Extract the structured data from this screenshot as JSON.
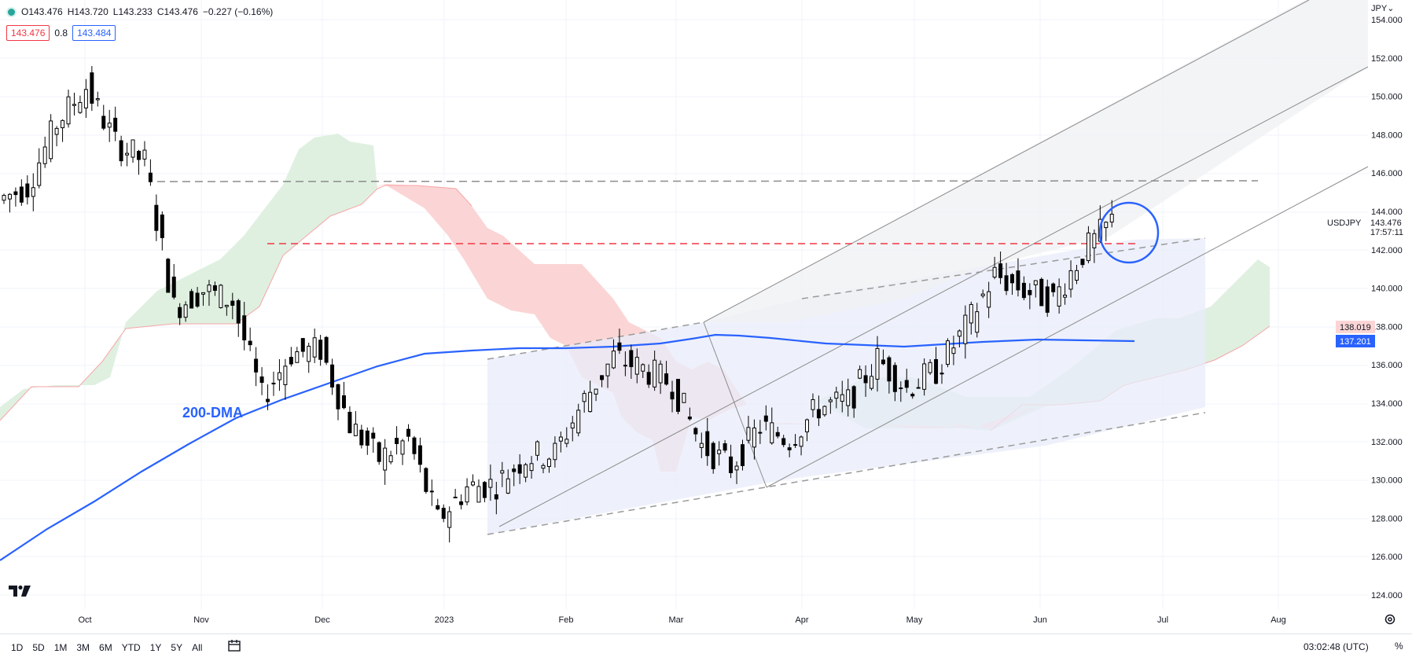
{
  "header": {
    "open": "O143.476",
    "high": "H143.720",
    "low": "L143.233",
    "close": "C143.476",
    "change": "−0.227 (−0.16%)",
    "bid": "143.476",
    "spread": "0.8",
    "ask": "143.484"
  },
  "price_axis": {
    "currency": "JPY",
    "current_price": "143.476",
    "countdown": "17:57:11",
    "symbol": "USDJPY",
    "cloud_label": "138.019",
    "ma_label": "137.201"
  },
  "annotation": {
    "ma_label": "200-DMA"
  },
  "bottom": {
    "ranges": [
      "1D",
      "5D",
      "1M",
      "3M",
      "6M",
      "YTD",
      "1Y",
      "5Y",
      "All"
    ],
    "clock": "03:02:48 (UTC)",
    "percent": "%"
  },
  "colors": {
    "bull": "#ffffff",
    "bear": "#000000",
    "ma": "#2962ff",
    "cloud_bull": "#dff0e1",
    "cloud_bear": "#fbd5d5",
    "resistance": "#f23645",
    "channel_fill": "#e8ecfa"
  },
  "chart_data": {
    "type": "candlestick",
    "symbol": "USDJPY",
    "y_range": [
      123.0,
      155.0
    ],
    "y_ticks": [
      "154.000",
      "152.000",
      "150.000",
      "148.000",
      "146.000",
      "144.000",
      "142.000",
      "140.000",
      "138.000",
      "136.000",
      "134.000",
      "132.000",
      "130.000",
      "128.000",
      "126.000",
      "124.000"
    ],
    "x_ticks": [
      "Oct",
      "Nov",
      "Dec",
      "2023",
      "Feb",
      "Mar",
      "Apr",
      "May",
      "Jun",
      "Jul",
      "Aug"
    ],
    "series_close": [
      [
        "2022-09-26",
        144.6
      ],
      [
        "2022-10-03",
        145.3
      ],
      [
        "2022-10-10",
        148.6
      ],
      [
        "2022-10-17",
        150.5
      ],
      [
        "2022-10-24",
        147.6
      ],
      [
        "2022-10-31",
        146.6
      ],
      [
        "2022-11-07",
        139.0
      ],
      [
        "2022-11-14",
        139.9
      ],
      [
        "2022-11-21",
        139.3
      ],
      [
        "2022-11-28",
        134.3
      ],
      [
        "2022-12-05",
        136.6
      ],
      [
        "2022-12-12",
        136.8
      ],
      [
        "2022-12-19",
        132.9
      ],
      [
        "2022-12-26",
        131.1
      ],
      [
        "2023-01-02",
        132.1
      ],
      [
        "2023-01-09",
        127.9
      ],
      [
        "2023-01-16",
        129.6
      ],
      [
        "2023-01-23",
        129.8
      ],
      [
        "2023-01-30",
        131.2
      ],
      [
        "2023-02-06",
        131.4
      ],
      [
        "2023-02-13",
        134.2
      ],
      [
        "2023-02-20",
        136.4
      ],
      [
        "2023-02-27",
        135.8
      ],
      [
        "2023-03-06",
        135.0
      ],
      [
        "2023-03-13",
        131.8
      ],
      [
        "2023-03-20",
        130.7
      ],
      [
        "2023-03-27",
        132.8
      ],
      [
        "2023-04-03",
        132.1
      ],
      [
        "2023-04-10",
        133.8
      ],
      [
        "2023-04-17",
        134.1
      ],
      [
        "2023-04-24",
        136.3
      ],
      [
        "2023-05-01",
        134.8
      ],
      [
        "2023-05-08",
        135.7
      ],
      [
        "2023-05-15",
        137.9
      ],
      [
        "2023-05-22",
        140.7
      ],
      [
        "2023-05-29",
        139.9
      ],
      [
        "2023-06-05",
        139.4
      ],
      [
        "2023-06-12",
        141.8
      ],
      [
        "2023-06-19",
        143.5
      ]
    ],
    "ma200": [
      [
        "2022-09-26",
        125.8
      ],
      [
        "2022-11-01",
        131.0
      ],
      [
        "2022-12-01",
        134.8
      ],
      [
        "2023-01-01",
        136.3
      ],
      [
        "2023-02-01",
        136.7
      ],
      [
        "2023-03-01",
        137.1
      ],
      [
        "2023-04-01",
        136.8
      ],
      [
        "2023-05-01",
        136.7
      ],
      [
        "2023-06-01",
        137.2
      ],
      [
        "2023-06-23",
        137.2
      ]
    ],
    "horizontal_levels": [
      145.6,
      142.2
    ],
    "annotations": [
      "200-DMA"
    ],
    "grid": true
  }
}
